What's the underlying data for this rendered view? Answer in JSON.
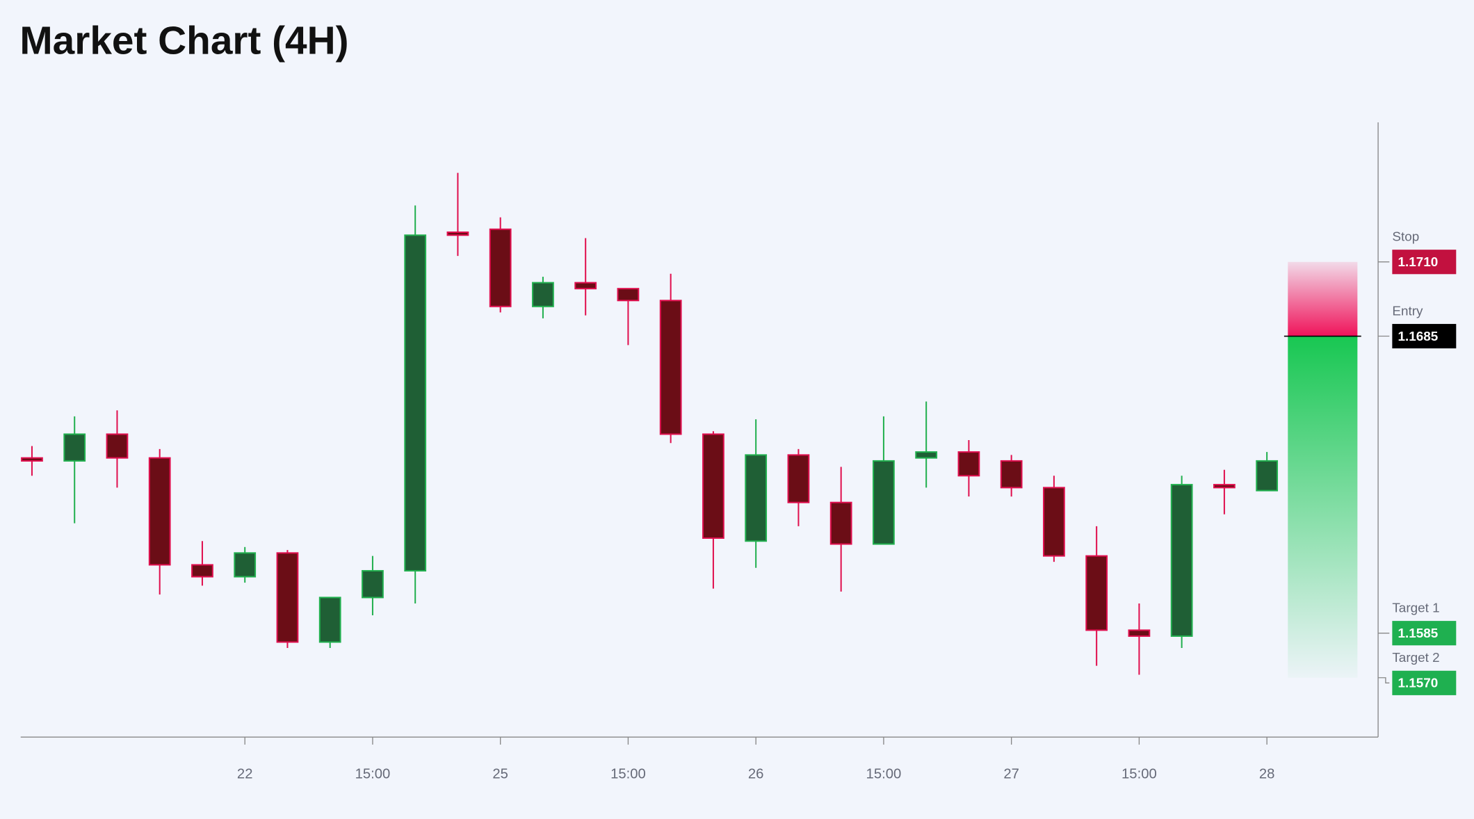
{
  "chart_data": {
    "type": "candlestick",
    "title": "Market Chart (4H)",
    "categories": [
      null,
      null,
      null,
      null,
      null,
      "22",
      null,
      null,
      "15:00",
      null,
      null,
      "25",
      null,
      null,
      "15:00",
      null,
      null,
      "26",
      null,
      null,
      "15:00",
      null,
      null,
      "27",
      null,
      null,
      "15:00",
      null,
      null,
      "28"
    ],
    "open": [
      1.1644,
      1.1643,
      1.1652,
      1.1644,
      1.1608,
      1.1604,
      1.1612,
      1.1582,
      1.1597,
      1.1606,
      1.172,
      1.1721,
      1.1695,
      1.1703,
      1.1701,
      1.1697,
      1.1652,
      1.1616,
      1.1645,
      1.1629,
      1.1615,
      1.1644,
      1.1646,
      1.1643,
      1.1634,
      1.1611,
      1.1586,
      1.1584,
      1.1635,
      1.1633
    ],
    "high": [
      1.1648,
      1.1658,
      1.166,
      1.1647,
      1.1616,
      1.1614,
      1.1613,
      1.1597,
      1.1611,
      1.1729,
      1.174,
      1.1725,
      1.1705,
      1.1718,
      1.1701,
      1.1706,
      1.1653,
      1.1657,
      1.1647,
      1.1641,
      1.1658,
      1.1663,
      1.165,
      1.1645,
      1.1638,
      1.1621,
      1.1595,
      1.1638,
      1.164,
      1.1646
    ],
    "low": [
      1.1638,
      1.1622,
      1.1634,
      1.1598,
      1.1601,
      1.1602,
      1.158,
      1.158,
      1.1591,
      1.1595,
      1.1712,
      1.1693,
      1.1691,
      1.1692,
      1.1682,
      1.1649,
      1.16,
      1.1607,
      1.1621,
      1.1599,
      1.1615,
      1.1634,
      1.1631,
      1.1631,
      1.1609,
      1.1574,
      1.1571,
      1.158,
      1.1625,
      1.1633
    ],
    "close": [
      1.1643,
      1.1652,
      1.1644,
      1.1608,
      1.1604,
      1.1612,
      1.1582,
      1.1597,
      1.1606,
      1.1719,
      1.1719,
      1.1695,
      1.1703,
      1.1701,
      1.1697,
      1.1652,
      1.1617,
      1.1645,
      1.1629,
      1.1615,
      1.1643,
      1.1646,
      1.1638,
      1.1634,
      1.1611,
      1.1586,
      1.1584,
      1.1635,
      1.1634,
      1.1643
    ],
    "up_color": "#1f5f35",
    "down_color": "#6b0d16",
    "up_wick_color": "#22b04f",
    "down_wick_color": "#e0104f",
    "ylim": [
      1.155,
      1.1757
    ],
    "levels": [
      {
        "name": "Stop",
        "value": 1.171,
        "label": "1.1710",
        "color": "#c2113f"
      },
      {
        "name": "Entry",
        "value": 1.1685,
        "label": "1.1685",
        "color": "#000000"
      },
      {
        "name": "Target 1",
        "value": 1.1585,
        "label": "1.1585",
        "color": "#1fb050"
      },
      {
        "name": "Target 2",
        "value": 1.157,
        "label": "1.1570",
        "color": "#1fb050"
      }
    ]
  }
}
